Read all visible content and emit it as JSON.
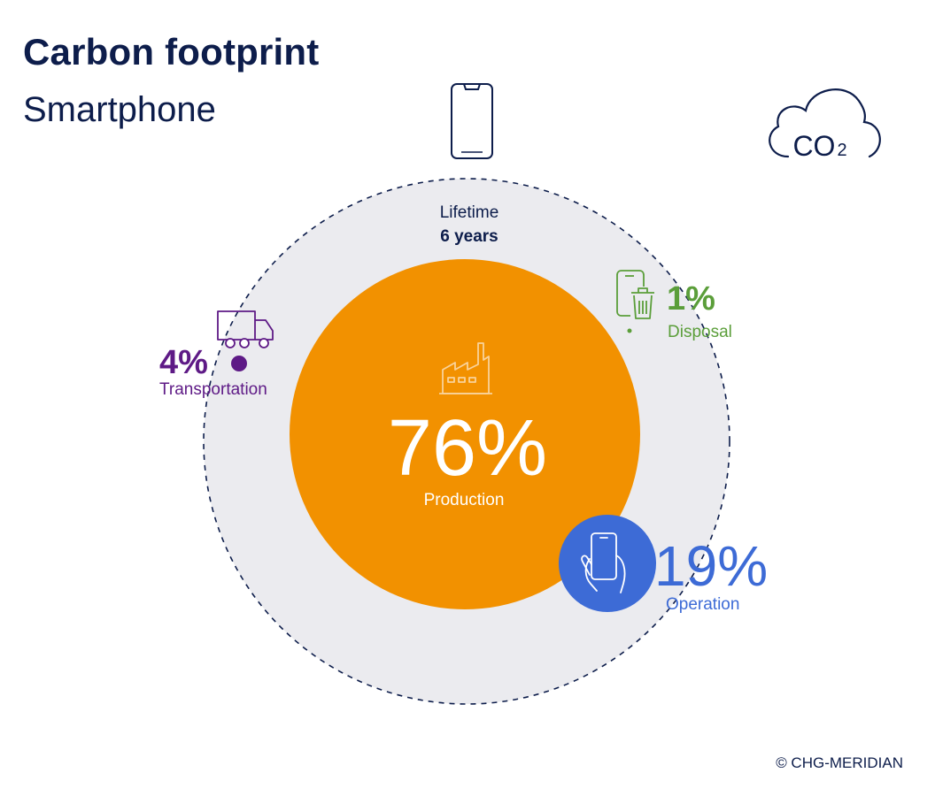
{
  "header": {
    "title": "Carbon footprint",
    "subtitle": "Smartphone"
  },
  "co2_badge": {
    "label": "CO",
    "subscript": "2",
    "icon": "cloud-icon"
  },
  "lifetime": {
    "label": "Lifetime",
    "value": "6 years"
  },
  "segments": [
    {
      "id": "production",
      "label": "Production",
      "percent_text": "76%",
      "value": 76,
      "color": "#f29100",
      "icon": "factory-icon"
    },
    {
      "id": "operation",
      "label": "Operation",
      "percent_text": "19%",
      "value": 19,
      "color": "#3d6bd6",
      "icon": "hand-smartphone-icon"
    },
    {
      "id": "transportation",
      "label": "Transportation",
      "percent_text": "4%",
      "value": 4,
      "color": "#5e1a86",
      "icon": "truck-icon"
    },
    {
      "id": "disposal",
      "label": "Disposal",
      "percent_text": "1%",
      "value": 1,
      "color": "#5b9e3a",
      "icon": "phone-bin-icon"
    }
  ],
  "colors": {
    "navy": "#0d1d4b",
    "ring": "#ebebef"
  },
  "footer": {
    "copyright": "© CHG-MERIDIAN"
  }
}
